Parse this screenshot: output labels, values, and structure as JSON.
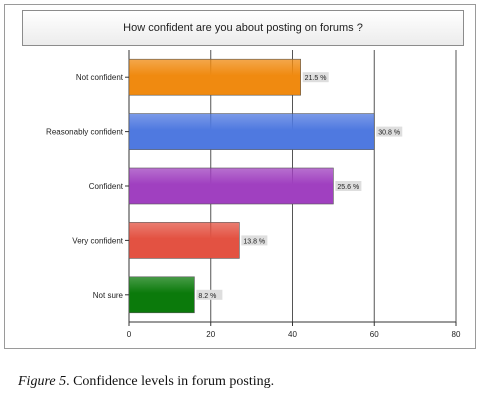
{
  "chart_data": {
    "type": "bar",
    "orientation": "horizontal",
    "title": "How confident are you about posting on forums ?",
    "categories": [
      "Not confident",
      "Reasonably confident",
      "Confident",
      "Very confident",
      "Not sure"
    ],
    "values": [
      42,
      60,
      50,
      27,
      16
    ],
    "data_labels": [
      "21.5 %",
      "30.8 %",
      "25.6 %",
      "13.8 %",
      "8.2 %"
    ],
    "bar_colors": [
      "#f08a10",
      "#4f79e0",
      "#a040c0",
      "#e35242",
      "#0b7a0b"
    ],
    "xlim": [
      0,
      80
    ],
    "xticks": [
      0,
      20,
      40,
      60,
      80
    ],
    "xticks_labels": [
      "0",
      "20",
      "40",
      "60",
      "80"
    ],
    "xlabel": "",
    "ylabel": "",
    "grid": true,
    "legend": "none"
  },
  "caption": {
    "figure_label": "Figure 5",
    "text": ". Confidence levels in forum posting."
  }
}
